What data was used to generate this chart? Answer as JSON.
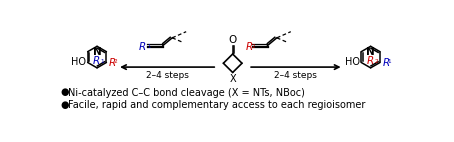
{
  "bg_color": "#ffffff",
  "text_black": "#000000",
  "text_red": "#cc0000",
  "text_blue": "#0000bb",
  "bullet1": "Ni-catalyzed C–C bond cleavage (X = NTs, NBoc)",
  "bullet2": "Facile, rapid and complementary access to each regioisomer",
  "steps_left": "2–4 steps",
  "steps_right": "2–4 steps",
  "figsize": [
    4.54,
    1.42
  ],
  "dpi": 100
}
